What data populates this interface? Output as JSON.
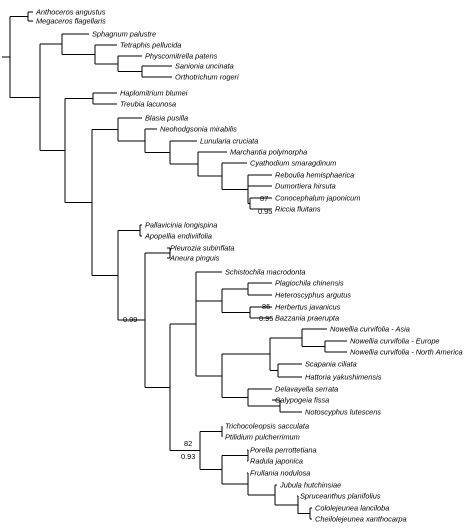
{
  "taxa": [
    "Anthoceros angustus",
    "Megaceros flagellaris",
    "Sphagnum palustre",
    "Tetraphis pellucida",
    "Physcomitrella patens",
    "Sanionia uncinata",
    "Orthotrichum rogeri",
    "Haplomitrium blumei",
    "Treubia lacunosa",
    "Blasia pusilla",
    "Neohodgsonia mirabilis",
    "Lunularia cruciata",
    "Marchantia polymorpha",
    "Cyathodium smaragdinum",
    "Reboulia hemisphaerica",
    "Dumortiera hirsuta",
    "Conocephalum japonicum",
    "Riccia fluitans",
    "Pallavicinia longispina",
    "Apopellia endiviifolia",
    "Pleurozia subinflata",
    "Aneura pinguis",
    "Schistochila macrodonta",
    "Plagiochila chinensis",
    "Heteroscyphus argutus",
    "Herbertus javanicus",
    "Bazzania praerupta",
    "Nowellia curvifolia - Asia",
    "Nowellia curvifolia - Europe",
    "Nowellia curvifolia - North America",
    "Scapania ciliata",
    "Hattoria yakushimensis",
    "Delavayella serrata",
    "Calypogeia fissa",
    "Notoscyphus lutescens",
    "Trichocoleopsis sacculata",
    "Ptilidium pulcherrimum",
    "Porella perrottetiana",
    "Radula japonica",
    "Frullania nodulosa",
    "Jubula hutchinsiae",
    "Spruceanthus planifolius",
    "Cololejeunea lanciloba",
    "Cheilolejeunea xanthocarpa"
  ],
  "support_values": [
    {
      "id": "s87",
      "label": "87"
    },
    {
      "id": "s095a",
      "label": "0.95"
    },
    {
      "id": "s86",
      "label": "86"
    },
    {
      "id": "s095b",
      "label": "0.95"
    },
    {
      "id": "s099",
      "label": "0.99"
    },
    {
      "id": "s82",
      "label": "82"
    },
    {
      "id": "s093",
      "label": "0.93"
    }
  ]
}
